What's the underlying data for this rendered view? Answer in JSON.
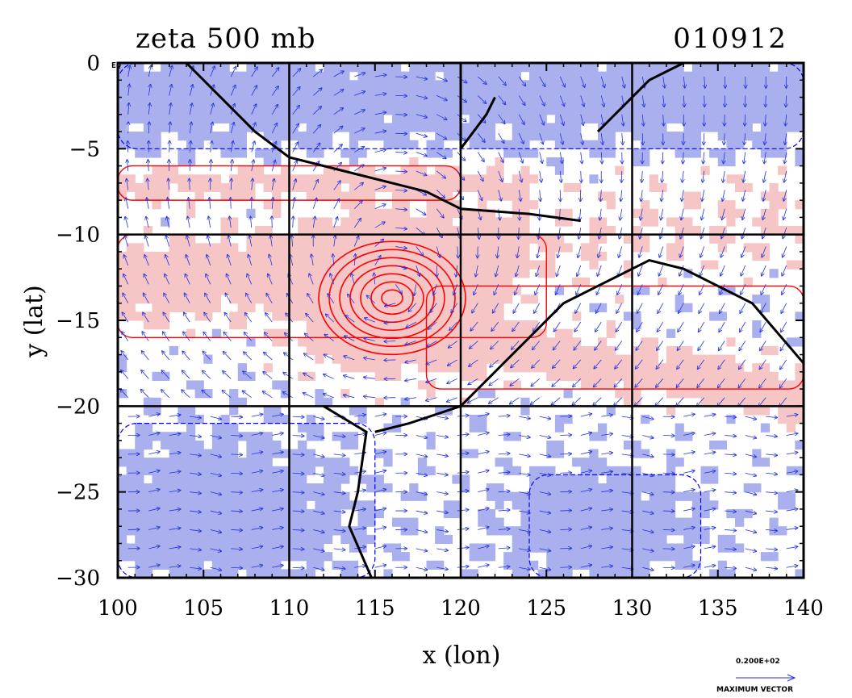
{
  "header": {
    "title": "zeta 500 mb",
    "date": "010912",
    "eq_label": "EQ"
  },
  "legend": {
    "vector_value": "0.200E+02",
    "vector_caption": "MAXIMUM VECTOR"
  },
  "chart_data": {
    "type": "heatmap",
    "title": "zeta 500 mb",
    "subtitle": "010912",
    "xlabel": "x (lon)",
    "ylabel": "y (lat)",
    "xlim": [
      100,
      140
    ],
    "ylim": [
      -30,
      0
    ],
    "xticks": [
      100,
      105,
      110,
      115,
      120,
      125,
      130,
      135,
      140
    ],
    "yticks": [
      0,
      -5,
      -10,
      -15,
      -20,
      -25,
      -30
    ],
    "xtick_labels": [
      "100",
      "105",
      "110",
      "115",
      "120",
      "125",
      "130",
      "135",
      "140"
    ],
    "ytick_labels": [
      "0",
      "−5",
      "−10",
      "−15",
      "−20",
      "−25",
      "−30"
    ],
    "gridlines_lon": [
      110,
      120,
      130
    ],
    "gridlines_lat": [
      -10,
      -20
    ],
    "grid": true,
    "colors": {
      "positive_fill": "#f6c6c6",
      "positive_contour": "#ff0000",
      "negative_fill": "#aab0ee",
      "negative_contour": "#0000ff",
      "vectors": "#2233dd",
      "coastline": "#000000"
    },
    "features": {
      "vortex_center": {
        "lon": 116,
        "lat": -13.7
      },
      "positive_bands": [
        {
          "lon": [
            100,
            120
          ],
          "lat": [
            -8,
            -6
          ]
        },
        {
          "lon": [
            100,
            125
          ],
          "lat": [
            -16,
            -10
          ]
        },
        {
          "lon": [
            118,
            140
          ],
          "lat": [
            -19,
            -13
          ]
        }
      ],
      "negative_regions": [
        {
          "lon": [
            100,
            115
          ],
          "lat": [
            -30,
            -21
          ]
        },
        {
          "lon": [
            124,
            134
          ],
          "lat": [
            -30,
            -24
          ]
        },
        {
          "lon": [
            100,
            140
          ],
          "lat": [
            -5,
            0
          ]
        }
      ]
    }
  }
}
